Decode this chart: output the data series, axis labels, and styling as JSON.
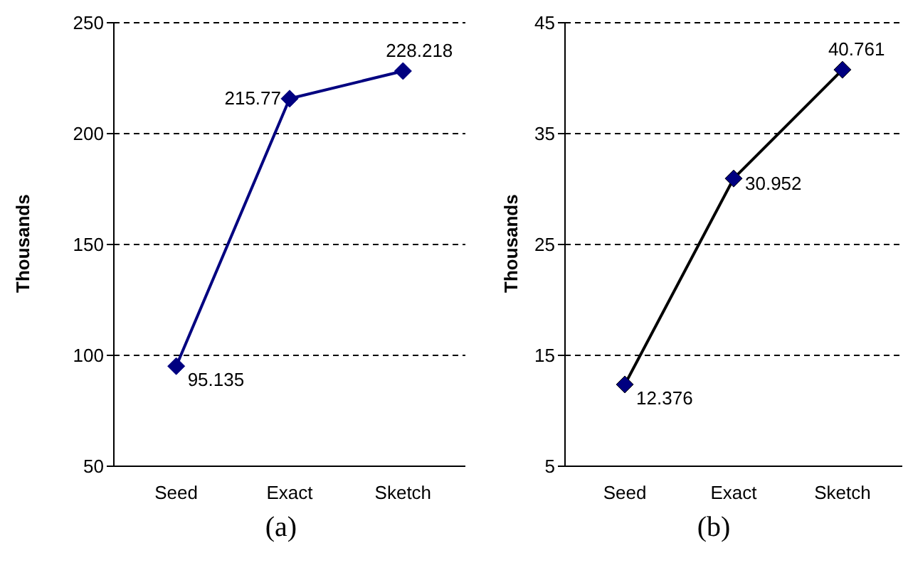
{
  "chart_data": [
    {
      "type": "line",
      "title": "(a)",
      "ylabel": "Thousands",
      "categories": [
        "Seed",
        "Exact",
        "Sketch"
      ],
      "series": [
        {
          "color": "#000080",
          "values": [
            95.135,
            215.77,
            228.218
          ]
        }
      ],
      "ylim": [
        50,
        250
      ],
      "yticks": [
        50,
        100,
        150,
        200,
        250
      ],
      "grid": "y",
      "marker": "diamond",
      "line_style": "solid",
      "data_labels": true,
      "legend": false
    },
    {
      "type": "line",
      "title": "(b)",
      "ylabel": "Thousands",
      "categories": [
        "Seed",
        "Exact",
        "Sketch"
      ],
      "series": [
        {
          "color": "#000000",
          "values": [
            12.376,
            30.952,
            40.761
          ]
        }
      ],
      "ylim": [
        5,
        45
      ],
      "yticks": [
        5,
        15,
        25,
        35,
        45
      ],
      "grid": "y",
      "marker": "diamond",
      "line_style": "solid",
      "data_labels": true,
      "legend": false
    }
  ]
}
